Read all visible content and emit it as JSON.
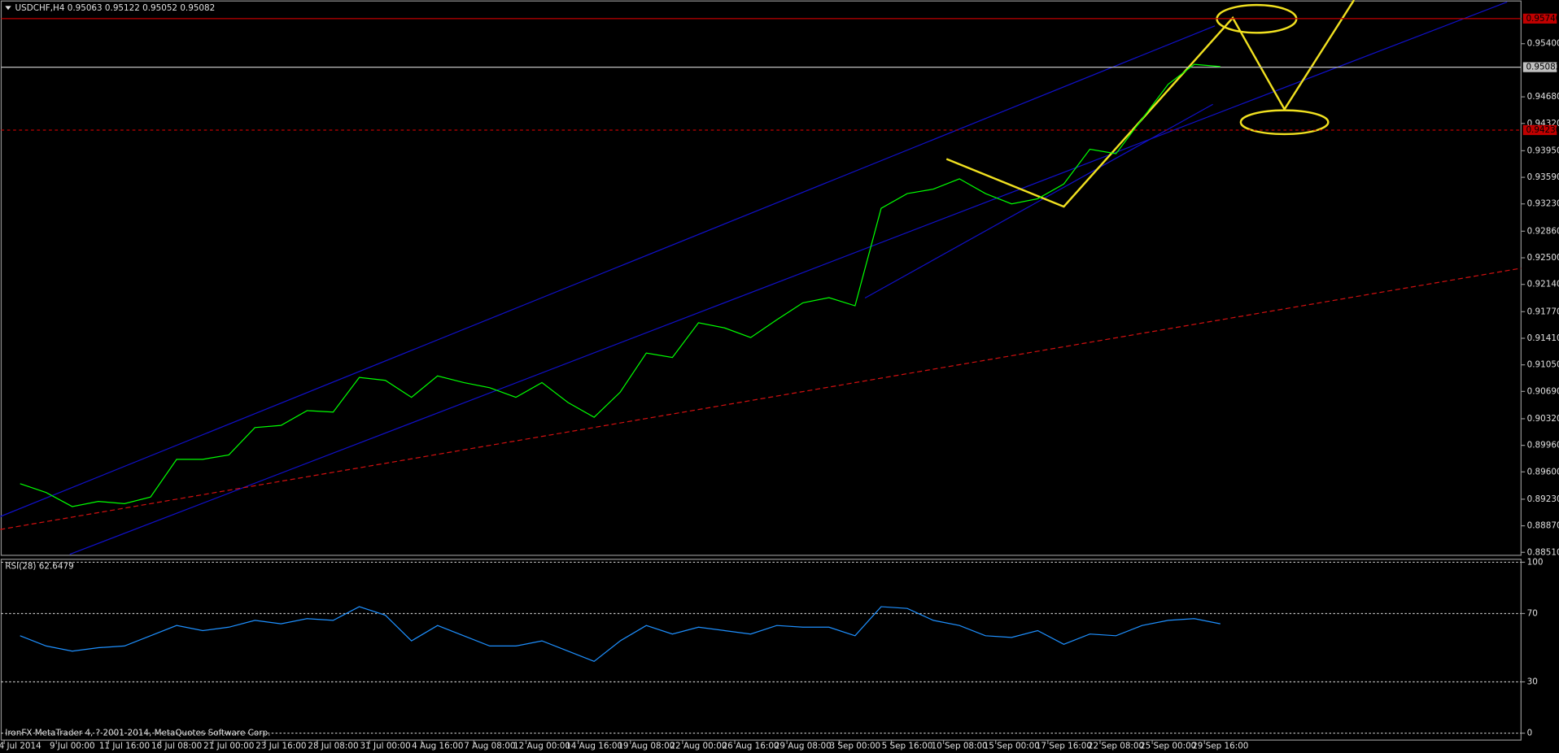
{
  "chart_data": [
    {
      "type": "line",
      "title": "USDCHF,H4  0.95063 0.95122 0.95052 0.95082",
      "categories": [
        "4 Jul 2014",
        null,
        "9 Jul 00:00",
        null,
        "11 Jul 16:00",
        null,
        "16 Jul 08:00",
        null,
        "21 Jul 00:00",
        null,
        "23 Jul 16:00",
        null,
        "28 Jul 08:00",
        null,
        "31 Jul 00:00",
        null,
        "4 Aug 16:00",
        null,
        "7 Aug 08:00",
        null,
        "12 Aug 00:00",
        null,
        "14 Aug 16:00",
        null,
        "19 Aug 08:00",
        null,
        "22 Aug 00:00",
        null,
        "26 Aug 16:00",
        null,
        "29 Aug 08:00",
        null,
        "3 Sep 00:00",
        null,
        "5 Sep 16:00",
        null,
        "10 Sep 08:00",
        null,
        "15 Sep 00:00",
        null,
        "17 Sep 16:00",
        null,
        "22 Sep 08:00",
        null,
        "25 Sep 00:00",
        null,
        "29 Sep 16:00"
      ],
      "series": [
        {
          "color": "#00ff00",
          "values": [
            0.8944,
            0.8932,
            0.8913,
            0.892,
            0.8917,
            0.8926,
            0.8977,
            0.8977,
            0.8983,
            0.902,
            0.9023,
            0.9043,
            0.9041,
            0.9088,
            0.9084,
            0.9061,
            0.909,
            0.9081,
            0.9074,
            0.9061,
            0.9081,
            0.9054,
            0.9034,
            0.9068,
            0.9121,
            0.9115,
            0.9162,
            0.9155,
            0.9142,
            0.9166,
            0.9189,
            0.9196,
            0.9185,
            0.9317,
            0.9337,
            0.9343,
            0.9357,
            0.9337,
            0.9323,
            0.933,
            0.935,
            0.9397,
            0.9391,
            0.9438,
            0.9485,
            0.9512,
            0.9509
          ]
        }
      ],
      "ylim": [
        0.8847,
        0.95965
      ],
      "yticks": [
        {
          "value": 0.954,
          "label": "0.95400"
        },
        {
          "value": 0.9468,
          "label": "0.94680"
        },
        {
          "value": 0.9432,
          "label": "0.94320"
        },
        {
          "value": 0.9395,
          "label": "0.93950"
        },
        {
          "value": 0.9359,
          "label": "0.93590"
        },
        {
          "value": 0.9323,
          "label": "0.93230"
        },
        {
          "value": 0.9286,
          "label": "0.92860"
        },
        {
          "value": 0.925,
          "label": "0.92500"
        },
        {
          "value": 0.9214,
          "label": "0.92140"
        },
        {
          "value": 0.9177,
          "label": "0.91770"
        },
        {
          "value": 0.9141,
          "label": "0.91410"
        },
        {
          "value": 0.9105,
          "label": "0.91050"
        },
        {
          "value": 0.9069,
          "label": "0.90690"
        },
        {
          "value": 0.9032,
          "label": "0.90320"
        },
        {
          "value": 0.8996,
          "label": "0.89960"
        },
        {
          "value": 0.896,
          "label": "0.89600"
        },
        {
          "value": 0.8923,
          "label": "0.89230"
        },
        {
          "value": 0.8887,
          "label": "0.88870"
        },
        {
          "value": 0.8851,
          "label": "0.88510"
        }
      ],
      "levels": [
        {
          "value": 0.9574,
          "label": "0.95740",
          "color": "#c00000",
          "dashed": false
        },
        {
          "value": 0.95082,
          "label": "0.95082",
          "color": "#c0c0c0",
          "dashed": false
        },
        {
          "value": 0.9423,
          "label": "0.94230",
          "color": "#c00000",
          "dashed": true
        }
      ]
    },
    {
      "type": "line",
      "title": "RSI(28) 62.6479",
      "series": [
        {
          "color": "#1e90ff",
          "values": [
            57,
            51,
            48,
            50,
            51,
            57,
            63,
            60,
            62,
            66,
            64,
            67,
            66,
            74,
            69,
            54,
            63,
            57,
            51,
            51,
            54,
            48,
            42,
            54,
            63,
            58,
            62,
            60,
            58,
            63,
            62,
            62,
            57,
            74,
            73,
            66,
            63,
            57,
            56,
            60,
            52,
            58,
            57,
            63,
            66,
            67,
            64
          ]
        }
      ],
      "ylim": [
        0,
        100
      ],
      "yticks": [
        100,
        70,
        30,
        0
      ]
    }
  ],
  "footer": "IronFX MetaTrader 4, ? 2001-2014, MetaQuotes Software Corp."
}
